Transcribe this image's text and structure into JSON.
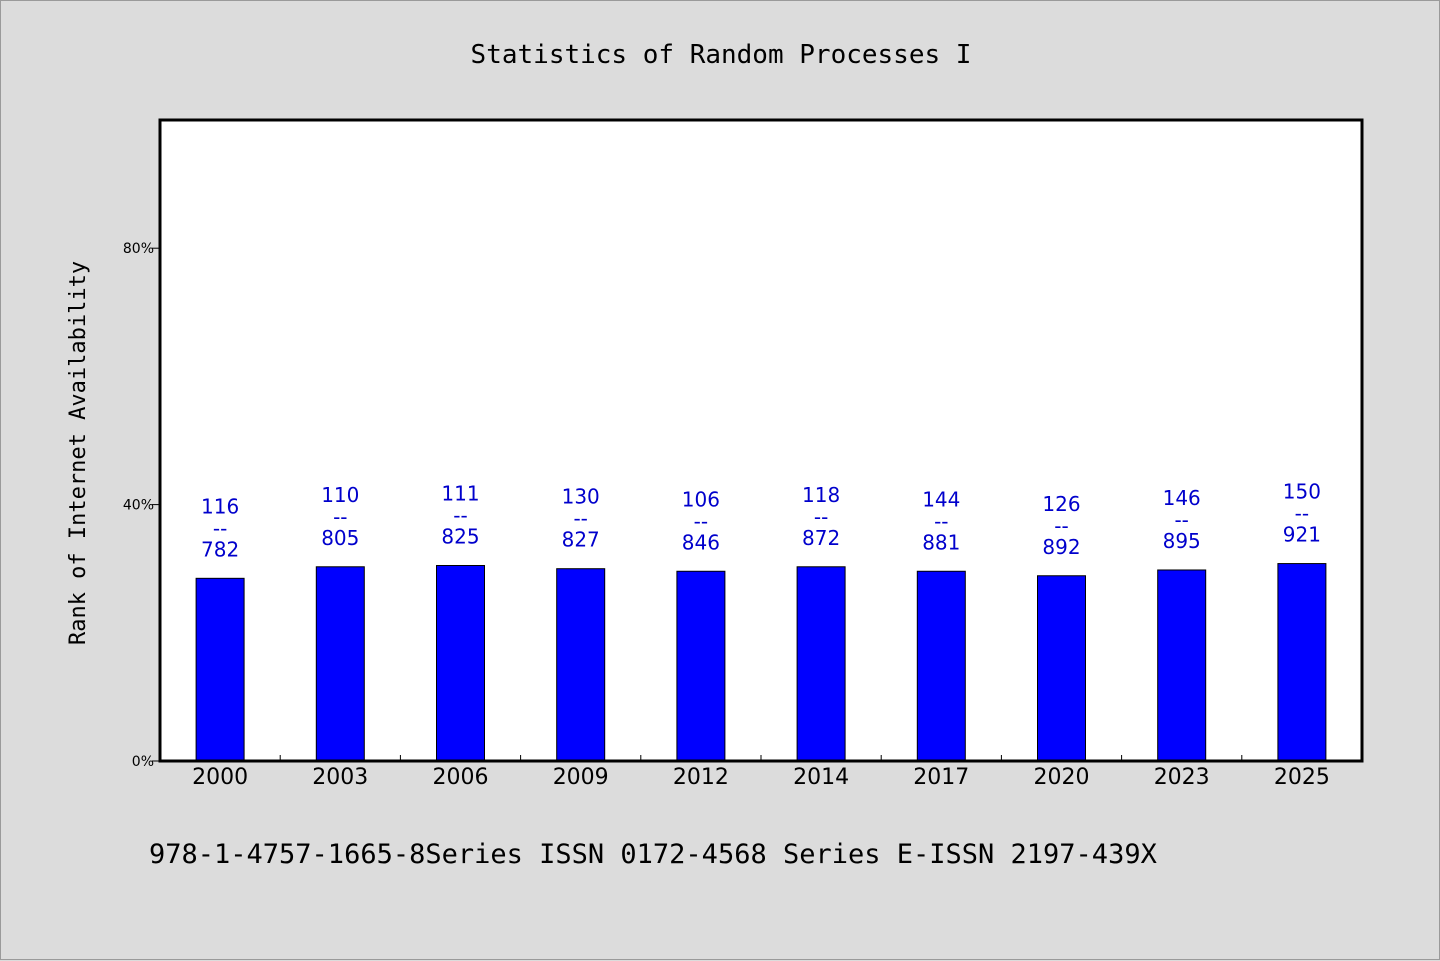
{
  "chart_data": {
    "type": "bar",
    "title": "Statistics of Random Processes I",
    "ylabel": "Rank of Internet Availability",
    "xlabel": "",
    "categories": [
      "2000",
      "2003",
      "2006",
      "2009",
      "2012",
      "2014",
      "2017",
      "2020",
      "2023",
      "2025"
    ],
    "values": [
      28.5,
      30.3,
      30.5,
      30.0,
      29.6,
      30.3,
      29.6,
      28.9,
      29.8,
      30.8
    ],
    "data_labels": [
      {
        "top": "116",
        "sep": "--",
        "bottom": "782"
      },
      {
        "top": "110",
        "sep": "--",
        "bottom": "805"
      },
      {
        "top": "111",
        "sep": "--",
        "bottom": "825"
      },
      {
        "top": "130",
        "sep": "--",
        "bottom": "827"
      },
      {
        "top": "106",
        "sep": "--",
        "bottom": "846"
      },
      {
        "top": "118",
        "sep": "--",
        "bottom": "872"
      },
      {
        "top": "144",
        "sep": "--",
        "bottom": "881"
      },
      {
        "top": "126",
        "sep": "--",
        "bottom": "892"
      },
      {
        "top": "146",
        "sep": "--",
        "bottom": "895"
      },
      {
        "top": "150",
        "sep": "--",
        "bottom": "921"
      }
    ],
    "ylim": [
      0,
      100
    ],
    "yticks": [
      0,
      40,
      80
    ],
    "ytick_labels": [
      "0%",
      "40%",
      "80%"
    ],
    "bar_color": "#0000ff",
    "label_color": "#0000cc",
    "grid": false,
    "footer": "978-1-4757-1665-8Series ISSN 0172-4568 Series E-ISSN 2197-439X"
  }
}
